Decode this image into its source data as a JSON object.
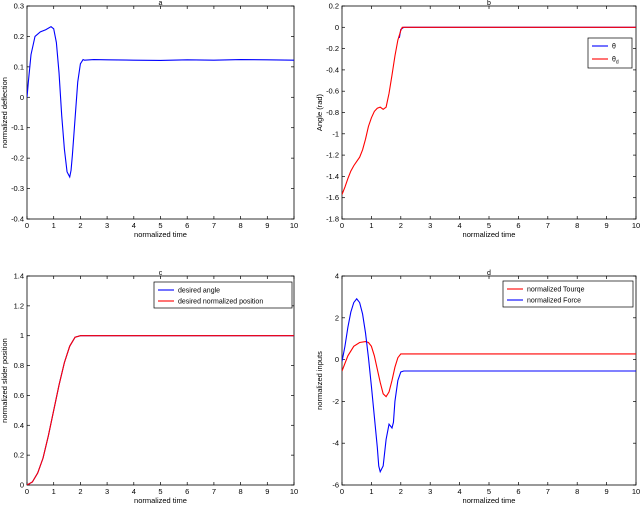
{
  "chart_data": [
    {
      "type": "line",
      "title": "a",
      "xlabel": "normalized time",
      "ylabel": "normalized deflection",
      "xlim": [
        0,
        10
      ],
      "ylim": [
        -0.4,
        0.3
      ],
      "xticks": [
        "0",
        "1",
        "2",
        "3",
        "4",
        "5",
        "6",
        "7",
        "8",
        "9",
        "10"
      ],
      "yticks": [
        "-0.4",
        "-0.3",
        "-0.2",
        "-0.1",
        "0",
        "0.1",
        "0.2",
        "0.3"
      ],
      "legend": null,
      "series": [
        {
          "color": "#0000ff",
          "x": [
            0,
            0.05,
            0.15,
            0.3,
            0.5,
            0.7,
            0.9,
            1.0,
            1.1,
            1.2,
            1.3,
            1.4,
            1.5,
            1.6,
            1.65,
            1.7,
            1.8,
            1.9,
            2.0,
            2.1,
            2.15,
            2.5,
            3,
            4,
            5,
            6,
            7,
            8,
            9,
            10
          ],
          "y": [
            0,
            0.05,
            0.14,
            0.2,
            0.215,
            0.222,
            0.232,
            0.225,
            0.18,
            0.08,
            -0.06,
            -0.17,
            -0.245,
            -0.262,
            -0.24,
            -0.19,
            -0.07,
            0.05,
            0.11,
            0.124,
            0.122,
            0.124,
            0.123,
            0.122,
            0.121,
            0.123,
            0.122,
            0.124,
            0.123,
            0.122
          ]
        }
      ]
    },
    {
      "type": "line",
      "title": "b",
      "xlabel": "normalized time",
      "ylabel": "Angle (rad)",
      "xlim": [
        0,
        10
      ],
      "ylim": [
        -1.8,
        0.2
      ],
      "xticks": [
        "0",
        "1",
        "2",
        "3",
        "4",
        "5",
        "6",
        "7",
        "8",
        "9",
        "10"
      ],
      "yticks": [
        "-1.8",
        "-1.6",
        "-1.4",
        "-1.2",
        "-1",
        "-0.8",
        "-0.6",
        "-0.4",
        "-0.2",
        "0",
        "0.2"
      ],
      "legend": {
        "position": "top-right",
        "entries": [
          "θ",
          "θd"
        ]
      },
      "series": [
        {
          "name": "θ",
          "color": "#0000ff",
          "x": [
            1.95,
            2.0,
            2.1,
            3,
            4,
            5,
            6,
            7,
            8,
            9,
            10
          ],
          "y": [
            -0.1,
            -0.02,
            0,
            0,
            0,
            0,
            0,
            0,
            0,
            0,
            0
          ]
        },
        {
          "name": "θd",
          "color": "#ff0000",
          "x": [
            0,
            0.1,
            0.2,
            0.3,
            0.4,
            0.5,
            0.6,
            0.7,
            0.8,
            0.9,
            1.0,
            1.1,
            1.2,
            1.3,
            1.4,
            1.5,
            1.6,
            1.7,
            1.8,
            1.9,
            2.0,
            2.05,
            2.1,
            3,
            4,
            5,
            6,
            7,
            8,
            9,
            10
          ],
          "y": [
            -1.57,
            -1.5,
            -1.42,
            -1.35,
            -1.3,
            -1.26,
            -1.22,
            -1.15,
            -1.05,
            -0.93,
            -0.85,
            -0.79,
            -0.76,
            -0.75,
            -0.77,
            -0.75,
            -0.62,
            -0.45,
            -0.27,
            -0.12,
            -0.03,
            0,
            0,
            0,
            0,
            0,
            0,
            0,
            0,
            0,
            0
          ]
        }
      ]
    },
    {
      "type": "line",
      "title": "c",
      "xlabel": "normalized time",
      "ylabel": "normalized slider position",
      "xlim": [
        0,
        10
      ],
      "ylim": [
        0,
        1.4
      ],
      "xticks": [
        "0",
        "1",
        "2",
        "3",
        "4",
        "5",
        "6",
        "7",
        "8",
        "9",
        "10"
      ],
      "yticks": [
        "0",
        "0.2",
        "0.4",
        "0.6",
        "0.8",
        "1",
        "1.2",
        "1.4"
      ],
      "legend": {
        "position": "top-right",
        "entries": [
          "desired angle",
          "desired normalized position"
        ]
      },
      "series": [
        {
          "name": "desired angle",
          "color": "#0000ff",
          "x": [
            0,
            0.2,
            0.4,
            0.6,
            0.8,
            1.0,
            1.2,
            1.4,
            1.6,
            1.8,
            2.0,
            3,
            4,
            5,
            6,
            7,
            8,
            9,
            10
          ],
          "y": [
            0,
            0.02,
            0.08,
            0.18,
            0.33,
            0.5,
            0.67,
            0.82,
            0.93,
            0.99,
            1.0,
            1.0,
            1.0,
            1.0,
            1.0,
            1.0,
            1.0,
            1.0,
            1.0
          ]
        },
        {
          "name": "desired normalized position",
          "color": "#ff0000",
          "x": [
            0,
            0.2,
            0.4,
            0.6,
            0.8,
            1.0,
            1.2,
            1.4,
            1.6,
            1.8,
            2.0,
            3,
            4,
            5,
            6,
            7,
            8,
            9,
            10
          ],
          "y": [
            0,
            0.02,
            0.08,
            0.18,
            0.33,
            0.5,
            0.67,
            0.82,
            0.93,
            0.99,
            1.0,
            1.0,
            1.0,
            1.0,
            1.0,
            1.0,
            1.0,
            1.0,
            1.0
          ]
        }
      ]
    },
    {
      "type": "line",
      "title": "d",
      "xlabel": "normalized time",
      "ylabel": "normalized inputs",
      "xlim": [
        0,
        10
      ],
      "ylim": [
        -6,
        5
      ],
      "xticks": [
        "0",
        "1",
        "2",
        "3",
        "4",
        "5",
        "6",
        "7",
        "8",
        "9",
        "10"
      ],
      "yticks": [
        "-6",
        "-4",
        "-2",
        "0",
        "2",
        "4"
      ],
      "legend": {
        "position": "top-right",
        "entries": [
          "normalized Tourqe",
          "normalized Force"
        ]
      },
      "series": [
        {
          "name": "normalized Tourqe",
          "color": "#ff0000",
          "x": [
            0,
            0.2,
            0.4,
            0.6,
            0.8,
            0.9,
            1.0,
            1.1,
            1.2,
            1.3,
            1.4,
            1.5,
            1.6,
            1.7,
            1.8,
            1.9,
            2.0,
            3,
            4,
            5,
            6,
            7,
            8,
            9,
            10
          ],
          "y": [
            0,
            0.8,
            1.3,
            1.5,
            1.55,
            1.5,
            1.3,
            0.8,
            0.1,
            -0.6,
            -1.2,
            -1.35,
            -1.1,
            -0.5,
            0.2,
            0.7,
            0.9,
            0.9,
            0.9,
            0.9,
            0.9,
            0.9,
            0.9,
            0.9,
            0.9
          ]
        },
        {
          "name": "normalized Force",
          "color": "#0000ff",
          "x": [
            0,
            0.1,
            0.2,
            0.3,
            0.4,
            0.5,
            0.6,
            0.7,
            0.8,
            0.9,
            1.0,
            1.1,
            1.2,
            1.25,
            1.3,
            1.4,
            1.5,
            1.6,
            1.7,
            1.75,
            1.8,
            1.9,
            2.0,
            2.1,
            3,
            4,
            5,
            6,
            7,
            8,
            9,
            10
          ],
          "y": [
            0.5,
            1.3,
            2.3,
            3.1,
            3.6,
            3.8,
            3.6,
            3.0,
            2.0,
            0.7,
            -0.8,
            -2.4,
            -4.0,
            -5.0,
            -5.3,
            -5.0,
            -3.6,
            -2.8,
            -3.0,
            -2.7,
            -1.6,
            -0.5,
            -0.05,
            0,
            0,
            0,
            0,
            0,
            0,
            0,
            0,
            0
          ]
        }
      ]
    }
  ]
}
